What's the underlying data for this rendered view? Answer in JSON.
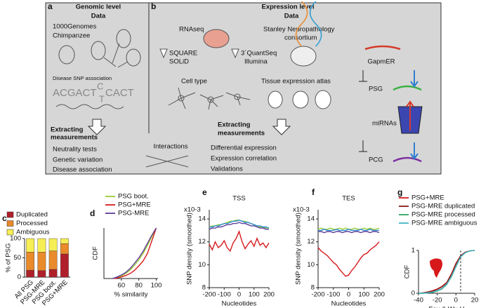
{
  "diagram": {
    "a": {
      "label": "a",
      "title": "Genomic level",
      "data": "Data",
      "sources": [
        "1000Genomes",
        "Chimpanzee"
      ],
      "snp": "Disease SNP association",
      "seq": [
        "ACGACT",
        "C",
        "T",
        "CACT"
      ],
      "extracting": [
        "Extracting",
        "measurements"
      ],
      "measures": [
        "Neutrality tests",
        "Genetic variation",
        "Disease association"
      ]
    },
    "interactions": "Interactions",
    "b": {
      "label": "b",
      "title": "Expression level",
      "data": "Data",
      "rnaseq": "RNAseq",
      "platforms": [
        "SQUARE",
        "SOLiD",
        "3´QuantSeq",
        "Illumina"
      ],
      "stanley": [
        "Stanley Neuropathology",
        "consortium"
      ],
      "cell": "Cell type",
      "tissue": "Tissue expression atlas",
      "extracting": [
        "Extracting",
        "measurements"
      ],
      "measures": [
        "Differential expression",
        "Expression correlation",
        "Validations"
      ],
      "gapmer": "GapmER",
      "psg": "PSG",
      "mirnas": "miRNAs",
      "pcg": "PCG"
    }
  },
  "chart_data": [
    {
      "type": "bar",
      "panel": "c",
      "stacked": true,
      "categories": [
        "All PSG",
        "PSG-MRE",
        "PSG boot.",
        "PSG+MRE"
      ],
      "series": [
        {
          "name": "Duplicated",
          "color": "#b0202a",
          "values": [
            18,
            17,
            20,
            60
          ]
        },
        {
          "name": "Processed",
          "color": "#e98a2b",
          "values": [
            47,
            48,
            48,
            27
          ]
        },
        {
          "name": "Ambiguous",
          "color": "#f6ee55",
          "values": [
            35,
            35,
            32,
            13
          ]
        }
      ],
      "ylim": [
        0,
        100
      ],
      "yticks": [
        0,
        50,
        100
      ],
      "ylabel": "% of PSG"
    },
    {
      "type": "line",
      "panel": "d",
      "x": [
        50,
        55,
        60,
        65,
        70,
        75,
        80,
        85,
        90,
        95,
        100
      ],
      "series": [
        {
          "name": "PSG boot.",
          "color": "#9acd32",
          "values": [
            0,
            0.02,
            0.05,
            0.1,
            0.17,
            0.26,
            0.37,
            0.5,
            0.66,
            0.83,
            1
          ]
        },
        {
          "name": "PSG+MRE",
          "color": "#d7191c",
          "values": [
            0,
            0.01,
            0.03,
            0.06,
            0.1,
            0.16,
            0.25,
            0.35,
            0.5,
            0.75,
            1
          ]
        },
        {
          "name": "PSG-MRE",
          "color": "#5e3c99",
          "values": [
            0,
            0.03,
            0.07,
            0.12,
            0.2,
            0.3,
            0.41,
            0.54,
            0.7,
            0.86,
            1
          ]
        }
      ],
      "xlim": [
        40,
        102
      ],
      "xticks": [
        60,
        80,
        100
      ],
      "ylim": [
        0,
        1
      ],
      "xlabel": "% similarity",
      "ylabel": "CDF"
    },
    {
      "type": "line",
      "panel": "e",
      "title": "TSS",
      "y_unit": "x10-3",
      "x": [
        -200,
        -180,
        -160,
        -140,
        -120,
        -100,
        -80,
        -60,
        -40,
        -20,
        0,
        20,
        40,
        60,
        80,
        100,
        120,
        140,
        160,
        180,
        200
      ],
      "series": [
        {
          "name": "PSG boot.",
          "color": "#9acd32",
          "values": [
            13.3,
            13.4,
            13.4,
            13.5,
            13.5,
            13.6,
            13.7,
            13.8,
            13.8,
            13.9,
            13.9,
            13.8,
            13.8,
            13.7,
            13.6,
            13.5,
            13.4,
            13.3,
            13.3,
            13.2,
            13.2
          ]
        },
        {
          "color": "#2b8cd0",
          "values": [
            13.3,
            13.3,
            13.4,
            13.4,
            13.5,
            13.6,
            13.6,
            13.7,
            13.8,
            13.8,
            13.9,
            13.8,
            13.7,
            13.7,
            13.6,
            13.5,
            13.4,
            13.4,
            13.3,
            13.3,
            13.2
          ]
        },
        {
          "name": "PSG-MRE",
          "color": "#5e3c99",
          "values": [
            13.1,
            13.2,
            13.2,
            13.3,
            13.3,
            13.4,
            13.5,
            13.5,
            13.6,
            13.6,
            13.7,
            13.6,
            13.6,
            13.5,
            13.4,
            13.4,
            13.3,
            13.2,
            13.2,
            13.1,
            13.1
          ]
        },
        {
          "name": "PSG+MRE",
          "color": "#d7191c",
          "values": [
            11.8,
            11.3,
            12.0,
            11.5,
            11.7,
            12.1,
            11.5,
            11.2,
            11.9,
            12.3,
            12.9,
            12.0,
            11.4,
            11.8,
            12.1,
            11.6,
            12.3,
            11.7,
            11.9,
            11.5,
            11.9
          ]
        }
      ],
      "xlim": [
        -200,
        200
      ],
      "xticks": [
        -200,
        -100,
        0,
        100,
        200
      ],
      "ylim": [
        8,
        14.8
      ],
      "yticks": [
        8,
        10,
        12,
        14
      ],
      "xlabel": "Nucleotides",
      "ylabel": "SNP density (smoothed)"
    },
    {
      "type": "line",
      "panel": "f",
      "title": "TES",
      "y_unit": "x10-3",
      "x": [
        -200,
        -180,
        -160,
        -140,
        -120,
        -100,
        -80,
        -60,
        -40,
        -20,
        0,
        20,
        40,
        60,
        80,
        100,
        120,
        140,
        160,
        180,
        200
      ],
      "series": [
        {
          "name": "PSG boot.",
          "color": "#9acd32",
          "values": [
            13.1,
            13.2,
            13.1,
            13.1,
            13.2,
            13.1,
            13.1,
            13.2,
            13.1,
            13.2,
            13.1,
            13.1,
            13.2,
            13.1,
            13.1,
            13.2,
            13.1,
            13.2,
            13.1,
            13.1,
            13.2
          ]
        },
        {
          "color": "#2b8cd0",
          "values": [
            13.0,
            13.0,
            13.1,
            13.0,
            13.0,
            13.0,
            13.1,
            13.0,
            13.0,
            13.0,
            13.1,
            13.0,
            13.0,
            13.0,
            13.1,
            13.0,
            13.0,
            13.1,
            13.0,
            13.0,
            13.0
          ]
        },
        {
          "name": "PSG-MRE",
          "color": "#5e3c99",
          "values": [
            12.9,
            12.9,
            12.8,
            12.9,
            12.9,
            12.8,
            12.9,
            12.9,
            12.8,
            12.9,
            12.9,
            12.8,
            12.9,
            12.9,
            12.8,
            12.9,
            12.9,
            12.8,
            12.9,
            12.9,
            12.8
          ]
        },
        {
          "name": "PSG+MRE",
          "color": "#d7191c",
          "values": [
            11.5,
            11.2,
            11.0,
            10.8,
            10.5,
            10.2,
            10.0,
            9.6,
            9.3,
            9.0,
            9.1,
            9.5,
            9.8,
            10.2,
            10.6,
            10.9,
            11.0,
            11.3,
            11.5,
            11.7,
            12.0
          ]
        }
      ],
      "xlim": [
        -200,
        200
      ],
      "xticks": [
        -200,
        -100,
        0,
        100,
        200
      ],
      "ylim": [
        8,
        14.8
      ],
      "yticks": [
        8,
        10,
        12,
        14
      ],
      "xlabel": "Nucleotides",
      "ylabel": "SNP density (smoothed)"
    },
    {
      "type": "line",
      "panel": "g",
      "x": [
        -40,
        -35,
        -30,
        -25,
        -20,
        -15,
        -10,
        -5,
        0,
        5,
        10,
        15,
        20
      ],
      "series": [
        {
          "name": "PSG+MRE",
          "color": "#d7191c",
          "values": [
            0,
            0.01,
            0.03,
            0.06,
            0.1,
            0.16,
            0.25,
            0.45,
            0.7,
            0.88,
            0.96,
            0.99,
            1
          ]
        },
        {
          "name": "PSG-MRE duplicated",
          "color": "#8b1a1a",
          "values": [
            0,
            0.01,
            0.03,
            0.05,
            0.09,
            0.15,
            0.24,
            0.43,
            0.68,
            0.87,
            0.96,
            0.99,
            1
          ]
        },
        {
          "name": "PSG-MRE processed",
          "color": "#2ca25f",
          "values": [
            0,
            0,
            0.01,
            0.02,
            0.05,
            0.1,
            0.2,
            0.38,
            0.62,
            0.85,
            0.95,
            0.99,
            1
          ]
        },
        {
          "name": "PSG-MRE ambiguous",
          "color": "#41b6c4",
          "values": [
            0,
            0,
            0.01,
            0.03,
            0.06,
            0.11,
            0.21,
            0.39,
            0.63,
            0.85,
            0.95,
            0.99,
            1
          ]
        }
      ],
      "xlim": [
        -40,
        20
      ],
      "xticks": [
        -40,
        -20,
        0,
        20
      ],
      "ylim": [
        0,
        1
      ],
      "yticks": [
        0,
        1
      ],
      "xlabel": "Fay & Wu H",
      "ylabel": "CDF"
    }
  ]
}
